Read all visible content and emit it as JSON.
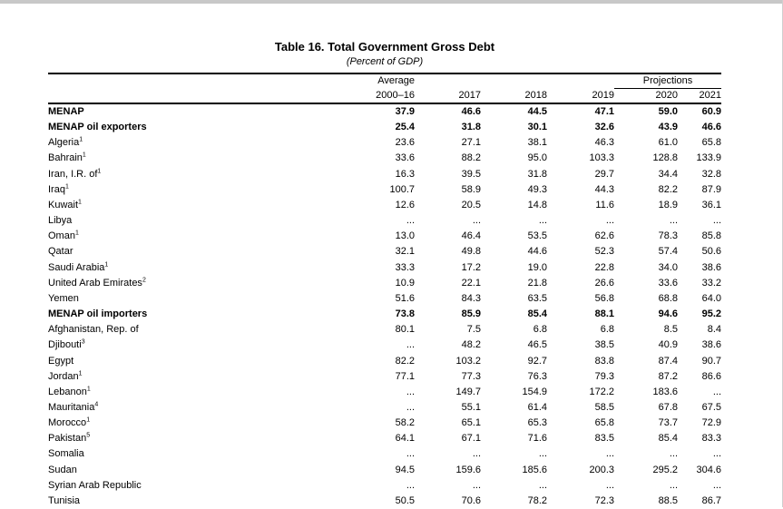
{
  "chrome": {
    "top_bar_color": "#c8c8c8"
  },
  "table": {
    "title": "Table 16. Total Government Gross Debt",
    "subtitle": "(Percent of GDP)",
    "col_group_average": "Average",
    "col_group_projections": "Projections",
    "columns": [
      "2000–16",
      "2017",
      "2018",
      "2019",
      "2020",
      "2021"
    ],
    "missing_marker": "...",
    "rows": [
      {
        "label": "MENAP",
        "sup": "",
        "indent": 0,
        "bold": true,
        "values": [
          "37.9",
          "46.6",
          "44.5",
          "47.1",
          "59.0",
          "60.9"
        ]
      },
      {
        "label": "MENAP oil exporters",
        "sup": "",
        "indent": 1,
        "bold": true,
        "values": [
          "25.4",
          "31.8",
          "30.1",
          "32.6",
          "43.9",
          "46.6"
        ]
      },
      {
        "label": "Algeria",
        "sup": "1",
        "indent": 2,
        "bold": false,
        "values": [
          "23.6",
          "27.1",
          "38.1",
          "46.3",
          "61.0",
          "65.8"
        ]
      },
      {
        "label": "Bahrain",
        "sup": "1",
        "indent": 2,
        "bold": false,
        "values": [
          "33.6",
          "88.2",
          "95.0",
          "103.3",
          "128.8",
          "133.9"
        ]
      },
      {
        "label": "Iran, I.R. of",
        "sup": "1",
        "indent": 2,
        "bold": false,
        "values": [
          "16.3",
          "39.5",
          "31.8",
          "29.7",
          "34.4",
          "32.8"
        ]
      },
      {
        "label": "Iraq",
        "sup": "1",
        "indent": 2,
        "bold": false,
        "values": [
          "100.7",
          "58.9",
          "49.3",
          "44.3",
          "82.2",
          "87.9"
        ]
      },
      {
        "label": "Kuwait",
        "sup": "1",
        "indent": 2,
        "bold": false,
        "values": [
          "12.6",
          "20.5",
          "14.8",
          "11.6",
          "18.9",
          "36.1"
        ]
      },
      {
        "label": "Libya",
        "sup": "",
        "indent": 2,
        "bold": false,
        "values": [
          "...",
          "...",
          "...",
          "...",
          "...",
          "..."
        ]
      },
      {
        "label": "Oman",
        "sup": "1",
        "indent": 2,
        "bold": false,
        "values": [
          "13.0",
          "46.4",
          "53.5",
          "62.6",
          "78.3",
          "85.8"
        ]
      },
      {
        "label": "Qatar",
        "sup": "",
        "indent": 2,
        "bold": false,
        "values": [
          "32.1",
          "49.8",
          "44.6",
          "52.3",
          "57.4",
          "50.6"
        ]
      },
      {
        "label": "Saudi Arabia",
        "sup": "1",
        "indent": 2,
        "bold": false,
        "values": [
          "33.3",
          "17.2",
          "19.0",
          "22.8",
          "34.0",
          "38.6"
        ]
      },
      {
        "label": "United Arab Emirates",
        "sup": "2",
        "indent": 2,
        "bold": false,
        "values": [
          "10.9",
          "22.1",
          "21.8",
          "26.6",
          "33.6",
          "33.2"
        ]
      },
      {
        "label": "Yemen",
        "sup": "",
        "indent": 2,
        "bold": false,
        "values": [
          "51.6",
          "84.3",
          "63.5",
          "56.8",
          "68.8",
          "64.0"
        ]
      },
      {
        "label": "MENAP oil importers",
        "sup": "",
        "indent": 1,
        "bold": true,
        "values": [
          "73.8",
          "85.9",
          "85.4",
          "88.1",
          "94.6",
          "95.2"
        ]
      },
      {
        "label": "Afghanistan, Rep. of",
        "sup": "",
        "indent": 2,
        "bold": false,
        "values": [
          "80.1",
          "7.5",
          "6.8",
          "6.8",
          "8.5",
          "8.4"
        ]
      },
      {
        "label": "Djibouti",
        "sup": "3",
        "indent": 2,
        "bold": false,
        "values": [
          "...",
          "48.2",
          "46.5",
          "38.5",
          "40.9",
          "38.6"
        ]
      },
      {
        "label": "Egypt",
        "sup": "",
        "indent": 2,
        "bold": false,
        "values": [
          "82.2",
          "103.2",
          "92.7",
          "83.8",
          "87.4",
          "90.7"
        ]
      },
      {
        "label": "Jordan",
        "sup": "1",
        "indent": 2,
        "bold": false,
        "values": [
          "77.1",
          "77.3",
          "76.3",
          "79.3",
          "87.2",
          "86.6"
        ]
      },
      {
        "label": "Lebanon",
        "sup": "1",
        "indent": 2,
        "bold": false,
        "values": [
          "...",
          "149.7",
          "154.9",
          "172.2",
          "183.6",
          "..."
        ]
      },
      {
        "label": "Mauritania",
        "sup": "4",
        "indent": 2,
        "bold": false,
        "values": [
          "...",
          "55.1",
          "61.4",
          "58.5",
          "67.8",
          "67.5"
        ]
      },
      {
        "label": "Morocco",
        "sup": "1",
        "indent": 2,
        "bold": false,
        "values": [
          "58.2",
          "65.1",
          "65.3",
          "65.8",
          "73.7",
          "72.9"
        ]
      },
      {
        "label": "Pakistan",
        "sup": "5",
        "indent": 2,
        "bold": false,
        "values": [
          "64.1",
          "67.1",
          "71.6",
          "83.5",
          "85.4",
          "83.3"
        ]
      },
      {
        "label": "Somalia",
        "sup": "",
        "indent": 2,
        "bold": false,
        "values": [
          "...",
          "...",
          "...",
          "...",
          "...",
          "..."
        ]
      },
      {
        "label": "Sudan",
        "sup": "",
        "indent": 2,
        "bold": false,
        "values": [
          "94.5",
          "159.6",
          "185.6",
          "200.3",
          "295.2",
          "304.6"
        ]
      },
      {
        "label": "Syrian Arab Republic",
        "sup": "",
        "indent": 2,
        "bold": false,
        "values": [
          "...",
          "...",
          "...",
          "...",
          "...",
          "..."
        ]
      },
      {
        "label": "Tunisia",
        "sup": "",
        "indent": 2,
        "bold": false,
        "values": [
          "50.5",
          "70.6",
          "78.2",
          "72.3",
          "88.5",
          "86.7"
        ]
      }
    ]
  }
}
